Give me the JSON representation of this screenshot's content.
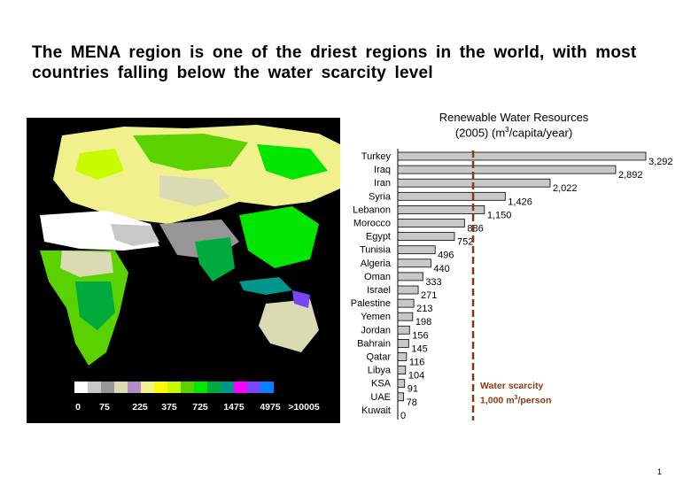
{
  "slide": {
    "title": "The MENA region is one of the driest regions in the world, with most countries falling below the water scarcity level",
    "page_number": "1"
  },
  "map": {
    "legend_labels": [
      "0",
      "75",
      "225",
      "375",
      "725",
      "1475",
      "4975",
      ">10005"
    ],
    "legend_colors": [
      "#ffffff",
      "#c8c8c8",
      "#969696",
      "#dadab4",
      "#b48cc8",
      "#f0f08c",
      "#fafa00",
      "#c8fa00",
      "#5ad200",
      "#00e600",
      "#00aa3c",
      "#00968c",
      "#fa00fa",
      "#7846fa",
      "#0082ff"
    ]
  },
  "colors": {
    "bar_fill": "#c8c8c8",
    "threshold_line": "#8b3a0e"
  },
  "chart_data": {
    "type": "bar",
    "orientation": "horizontal",
    "title_line1": "Renewable Water Resources",
    "title_line2_pre": "(2005) (m",
    "title_line2_sup": "3",
    "title_line2_post": "/capita/year)",
    "categories": [
      "Turkey",
      "Iraq",
      "Iran",
      "Syria",
      "Lebanon",
      "Morocco",
      "Egypt",
      "Tunisia",
      "Algeria",
      "Oman",
      "Israel",
      "Palestine",
      "Yemen",
      "Jordan",
      "Bahrain",
      "Qatar",
      "Libya",
      "KSA",
      "UAE",
      "Kuwait"
    ],
    "values": [
      3292,
      2892,
      2022,
      1426,
      1150,
      886,
      752,
      496,
      440,
      333,
      271,
      213,
      198,
      156,
      145,
      116,
      104,
      91,
      78,
      0
    ],
    "value_labels": [
      "3,292",
      "2,892",
      "2,022",
      "1,426",
      "1,150",
      "886",
      "752",
      "496",
      "440",
      "333",
      "271",
      "213",
      "198",
      "156",
      "145",
      "116",
      "104",
      "91",
      "78",
      "0"
    ],
    "threshold": {
      "value": 1000,
      "label_line1": "Water scarcity",
      "label_line2_pre": "1,000 m",
      "label_line2_sup": "3",
      "label_line2_post": "/person"
    }
  }
}
